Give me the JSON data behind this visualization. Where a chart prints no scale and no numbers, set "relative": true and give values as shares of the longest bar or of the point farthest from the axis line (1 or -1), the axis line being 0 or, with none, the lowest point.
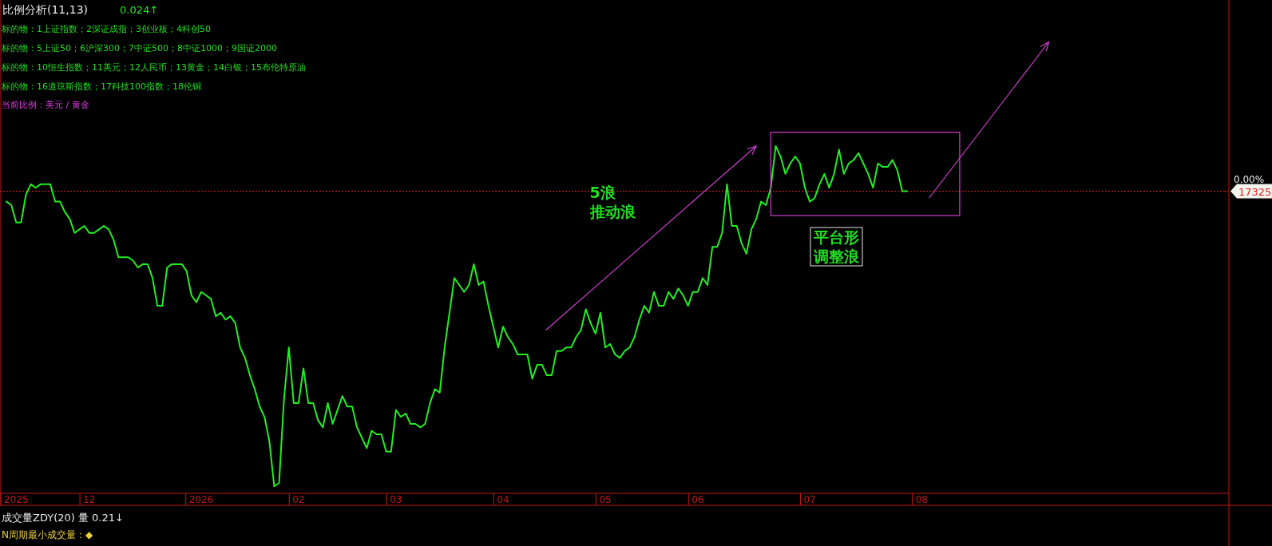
{
  "chart_data": {
    "type": "line",
    "relative": true,
    "title": "比例分析(11,13)",
    "subtitle": "0.024↑",
    "annotations": [
      "标的物：1上证指数；2深证成指；3创业板；4科创50",
      "标的物：5上证50；6沪深300；7中证500；8中证1000；9国证2000",
      "标的物：10恒生指数；11美元；12人民币；13黄金；14白银；15布伦特原油",
      "标的物：16道琼斯指数；17科技100指数；18伦铜",
      "当前比例：美元 / 黄金",
      "5浪",
      "推动浪",
      "平台形",
      "调整浪",
      "成交量ZDY(20)  量 0.21↓",
      "N周期最小成交量：◆",
      "0.00%",
      "17325"
    ],
    "categories": [
      null,
      null,
      "2025",
      null,
      null,
      null,
      null,
      null,
      null,
      null,
      null,
      null,
      null,
      null,
      null,
      null,
      null,
      "12",
      null,
      null,
      null,
      null,
      null,
      null,
      null,
      null,
      null,
      null,
      null,
      null,
      null,
      null,
      null,
      null,
      null,
      null,
      null,
      null,
      null,
      null,
      "2026",
      null,
      null,
      null,
      null,
      null,
      null,
      null,
      null,
      null,
      null,
      null,
      null,
      null,
      null,
      null,
      null,
      null,
      null,
      null,
      "02",
      null,
      null,
      null,
      null,
      null,
      null,
      null,
      null,
      null,
      null,
      null,
      null,
      null,
      null,
      null,
      null,
      null,
      null,
      null,
      "03",
      null,
      null,
      null,
      null,
      null,
      null,
      null,
      null,
      null,
      null,
      null,
      null,
      null,
      null,
      null,
      null,
      null,
      null,
      null,
      null,
      null,
      "04",
      null,
      null,
      null,
      null,
      null,
      null,
      null,
      null,
      null,
      null,
      null,
      null,
      null,
      null,
      null,
      null,
      null,
      null,
      null,
      null,
      "05",
      null,
      null,
      null,
      null,
      null,
      null,
      null,
      null,
      null,
      null,
      null,
      null,
      null,
      null,
      null,
      null,
      null,
      null,
      "06",
      null,
      null,
      null,
      null,
      null,
      null,
      null,
      null,
      null,
      null,
      null,
      null,
      null,
      null,
      null,
      null,
      null,
      null,
      null,
      null,
      null,
      null,
      "07",
      null,
      null,
      null,
      null,
      null,
      null,
      null,
      null,
      null,
      null,
      null,
      null,
      null,
      null,
      null,
      null,
      null,
      null,
      null,
      null,
      null,
      null,
      "08"
    ],
    "series": [
      {
        "color": "#22ee22",
        "values": [
          0.84,
          0.83,
          0.78,
          0.78,
          0.86,
          0.89,
          0.88,
          0.89,
          0.89,
          0.89,
          0.84,
          0.84,
          0.81,
          0.79,
          0.75,
          0.76,
          0.77,
          0.75,
          0.75,
          0.76,
          0.77,
          0.76,
          0.73,
          0.68,
          0.68,
          0.68,
          0.67,
          0.65,
          0.66,
          0.66,
          0.62,
          0.54,
          0.54,
          0.65,
          0.66,
          0.66,
          0.66,
          0.64,
          0.57,
          0.55,
          0.58,
          0.57,
          0.56,
          0.51,
          0.52,
          0.5,
          0.51,
          0.49,
          0.42,
          0.39,
          0.34,
          0.3,
          0.25,
          0.22,
          0.15,
          0.02,
          0.03,
          0.27,
          0.42,
          0.26,
          0.26,
          0.36,
          0.26,
          0.26,
          0.21,
          0.19,
          0.26,
          0.2,
          0.24,
          0.28,
          0.25,
          0.25,
          0.19,
          0.16,
          0.13,
          0.18,
          0.17,
          0.17,
          0.12,
          0.12,
          0.24,
          0.22,
          0.23,
          0.2,
          0.2,
          0.19,
          0.2,
          0.26,
          0.3,
          0.29,
          0.42,
          0.52,
          0.62,
          0.6,
          0.58,
          0.6,
          0.66,
          0.6,
          0.61,
          0.54,
          0.48,
          0.42,
          0.48,
          0.45,
          0.43,
          0.4,
          0.4,
          0.4,
          0.33,
          0.37,
          0.37,
          0.34,
          0.34,
          0.41,
          0.41,
          0.42,
          0.42,
          0.45,
          0.47,
          0.53,
          0.49,
          0.46,
          0.52,
          0.42,
          0.43,
          0.4,
          0.39,
          0.41,
          0.42,
          0.45,
          0.5,
          0.54,
          0.52,
          0.58,
          0.54,
          0.54,
          0.58,
          0.56,
          0.59,
          0.57,
          0.54,
          0.58,
          0.58,
          0.62,
          0.6,
          0.71,
          0.71,
          0.75,
          0.89,
          0.77,
          0.77,
          0.72,
          0.69,
          0.76,
          0.79,
          0.84,
          0.83,
          0.88,
          1,
          0.97,
          0.92,
          0.95,
          0.97,
          0.95,
          0.88,
          0.84,
          0.85,
          0.89,
          0.92,
          0.88,
          0.92,
          0.99,
          0.92,
          0.95,
          0.96,
          0.98,
          0.95,
          0.92,
          0.88,
          0.95,
          0.94,
          0.94,
          0.96,
          0.93,
          0.87,
          0.87,
          null,
          null,
          null
        ]
      }
    ],
    "ref_lines": [
      {
        "axis": "y",
        "value": 0.87,
        "color": "#e02020",
        "line_style": "dotted"
      }
    ],
    "grid": false,
    "marker": "none",
    "line_style": "solid"
  }
}
